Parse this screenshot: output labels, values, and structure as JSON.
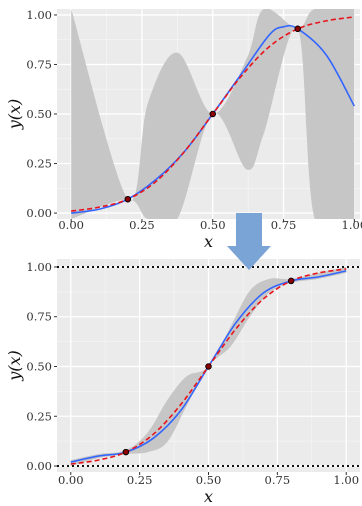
{
  "chart_data": [
    {
      "type": "line",
      "panel": "top",
      "xlabel": "x",
      "ylabel": "y(x)",
      "xlim": [
        -0.05,
        1.02
      ],
      "ylim": [
        -0.03,
        1.03
      ],
      "xticks": [
        "0.00",
        "0.25",
        "0.50",
        "0.75",
        "1.00"
      ],
      "yticks": [
        "0.00",
        "0.25",
        "0.50",
        "0.75",
        "1.00"
      ],
      "grid": true,
      "series": [
        {
          "role": "uncertainty-band",
          "x": [
            0.0,
            0.2,
            0.27,
            0.375,
            0.5,
            0.62,
            0.68,
            0.8,
            0.86,
            1.0
          ],
          "lower": [
            -0.03,
            0.07,
            -0.03,
            -0.03,
            0.5,
            0.22,
            0.4,
            0.93,
            -0.03,
            -0.03
          ],
          "upper": [
            1.03,
            0.07,
            0.55,
            0.81,
            0.5,
            0.78,
            1.03,
            0.93,
            1.03,
            1.03
          ]
        },
        {
          "role": "mean-prediction",
          "color": "#3366ff",
          "x": [
            0.0,
            0.1,
            0.2,
            0.3,
            0.4,
            0.5,
            0.6,
            0.7,
            0.75,
            0.8,
            0.9,
            1.0
          ],
          "y": [
            0.0,
            0.02,
            0.07,
            0.17,
            0.31,
            0.5,
            0.7,
            0.9,
            0.94,
            0.93,
            0.8,
            0.54
          ]
        },
        {
          "role": "true-function",
          "color": "#e8141c",
          "x": [
            0.0,
            0.1,
            0.2,
            0.3,
            0.4,
            0.5,
            0.6,
            0.7,
            0.8,
            0.9,
            1.0
          ],
          "y": [
            0.01,
            0.03,
            0.07,
            0.16,
            0.31,
            0.5,
            0.69,
            0.84,
            0.93,
            0.97,
            0.99
          ]
        },
        {
          "role": "observations",
          "x": [
            0.2,
            0.5,
            0.8
          ],
          "y": [
            0.07,
            0.5,
            0.93
          ]
        }
      ]
    },
    {
      "type": "line",
      "panel": "bottom",
      "xlabel": "x",
      "ylabel": "y(x)",
      "xlim": [
        -0.05,
        1.05
      ],
      "ylim": [
        -0.03,
        1.04
      ],
      "xticks": [
        "0.00",
        "0.25",
        "0.50",
        "0.75",
        "1.00"
      ],
      "yticks": [
        "0.00",
        "0.25",
        "0.50",
        "0.75",
        "1.00"
      ],
      "grid": true,
      "hlines": [
        0.0,
        1.0
      ],
      "series": [
        {
          "role": "uncertainty-band",
          "x": [
            0.0,
            0.1,
            0.2,
            0.28,
            0.35,
            0.42,
            0.5,
            0.58,
            0.65,
            0.72,
            0.8,
            0.9,
            1.0
          ],
          "lower": [
            0.0,
            0.04,
            0.06,
            0.07,
            0.12,
            0.3,
            0.5,
            0.6,
            0.75,
            0.87,
            0.92,
            0.94,
            0.97
          ],
          "upper": [
            0.03,
            0.06,
            0.08,
            0.17,
            0.33,
            0.45,
            0.5,
            0.7,
            0.88,
            0.94,
            0.94,
            0.97,
            1.0
          ]
        },
        {
          "role": "mean-prediction",
          "color": "#3366ff",
          "x": [
            0.0,
            0.1,
            0.2,
            0.3,
            0.4,
            0.5,
            0.6,
            0.7,
            0.8,
            0.9,
            1.0
          ],
          "y": [
            0.02,
            0.05,
            0.07,
            0.14,
            0.28,
            0.5,
            0.72,
            0.87,
            0.93,
            0.95,
            0.98
          ]
        },
        {
          "role": "true-function",
          "color": "#e8141c",
          "x": [
            0.0,
            0.1,
            0.2,
            0.3,
            0.4,
            0.5,
            0.6,
            0.7,
            0.8,
            0.9,
            1.0
          ],
          "y": [
            0.01,
            0.03,
            0.07,
            0.16,
            0.31,
            0.5,
            0.69,
            0.84,
            0.93,
            0.97,
            0.99
          ]
        },
        {
          "role": "observations",
          "x": [
            0.2,
            0.5,
            0.8
          ],
          "y": [
            0.07,
            0.5,
            0.93
          ]
        }
      ]
    }
  ],
  "arrow_color": "#7aa3d6"
}
